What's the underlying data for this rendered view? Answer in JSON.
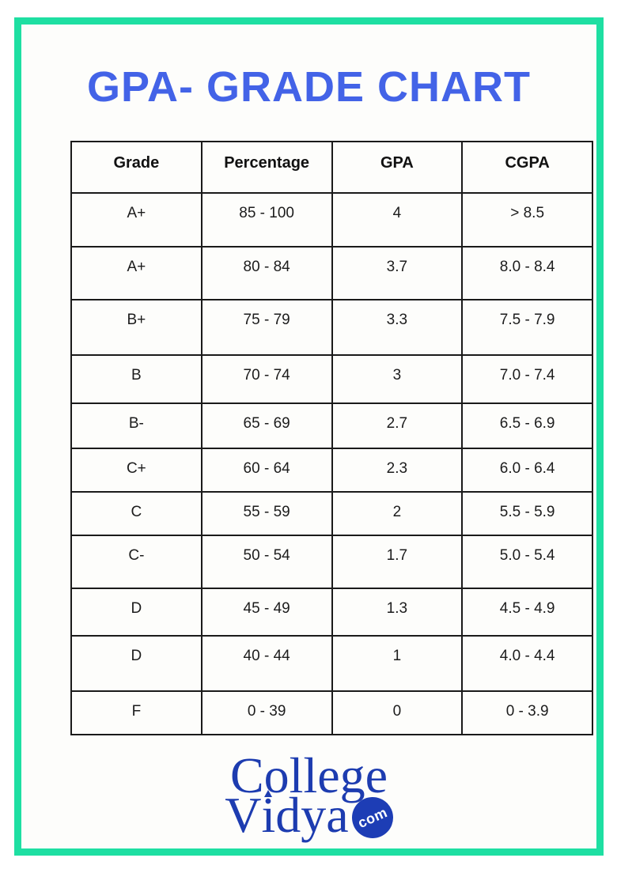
{
  "page": {
    "title": "GPA- GRADE CHART"
  },
  "chart_data": {
    "type": "table",
    "title": "GPA- GRADE CHART",
    "columns": [
      "Grade",
      "Percentage",
      "GPA",
      "CGPA"
    ],
    "rows": [
      [
        "A+",
        "85 - 100",
        "4",
        "> 8.5"
      ],
      [
        "A+",
        "80 - 84",
        "3.7",
        "8.0 - 8.4"
      ],
      [
        "B+",
        "75 - 79",
        "3.3",
        "7.5 - 7.9"
      ],
      [
        "B",
        "70 - 74",
        "3",
        "7.0 - 7.4"
      ],
      [
        "B-",
        "65 - 69",
        "2.7",
        "6.5 - 6.9"
      ],
      [
        "C+",
        "60 - 64",
        "2.3",
        "6.0 - 6.4"
      ],
      [
        "C",
        "55 - 59",
        "2",
        "5.5 - 5.9"
      ],
      [
        "C-",
        "50 - 54",
        "1.7",
        "5.0 - 5.4"
      ],
      [
        "D",
        "45 - 49",
        "1.3",
        "4.5 - 4.9"
      ],
      [
        "D",
        "40 - 44",
        "1",
        "4.0 - 4.4"
      ],
      [
        "F",
        "0 - 39",
        "0",
        "0 - 3.9"
      ]
    ]
  },
  "logo": {
    "word1": "College",
    "word2_prefix": "V",
    "word2_i": "i",
    "word2_suffix": "dya",
    "badge": "com"
  },
  "colors": {
    "frame_green": "#1edfa2",
    "title_blue": "#4363e7",
    "logo_blue": "#1d3cb0",
    "badge_blue": "#1d3db5",
    "table_border": "#1a1a1a"
  }
}
